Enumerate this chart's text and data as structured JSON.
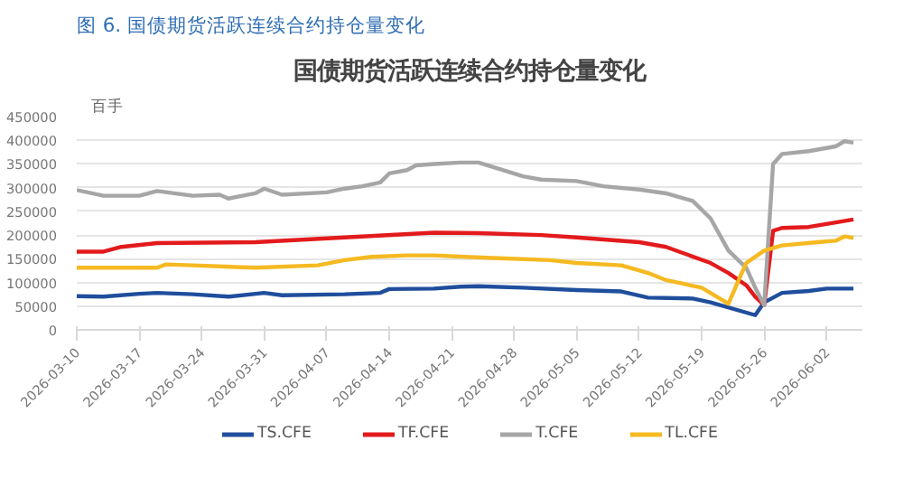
{
  "chart_data": {
    "type": "line",
    "title": "图 6. 国债期货活跃连续合约持仓量变化",
    "subtitle": "国债期货活跃连续合约持仓量变化",
    "ylabel": "百手",
    "xlim": [
      "2026-03-10",
      "2026-06-06"
    ],
    "xticks": [
      "2026-03-10",
      "2026-03-17",
      "2026-03-24",
      "2026-03-31",
      "2026-04-07",
      "2026-04-14",
      "2026-04-21",
      "2026-04-28",
      "2026-05-05",
      "2026-05-12",
      "2026-05-19",
      "2026-05-26",
      "2026-06-02"
    ],
    "ylim": [
      0,
      450000
    ],
    "yticks": [
      0,
      50000,
      100000,
      150000,
      200000,
      250000,
      300000,
      350000,
      400000,
      450000
    ],
    "grid": "y",
    "legend": "bottom",
    "marker": "none",
    "line_style": "solid",
    "series": [
      {
        "name": "TS.CFE",
        "color": "#1f4e9c",
        "x": [
          "2026-03-10",
          "2026-03-13",
          "2026-03-17",
          "2026-03-19",
          "2026-03-23",
          "2026-03-27",
          "2026-03-31",
          "2026-04-02",
          "2026-04-09",
          "2026-04-13",
          "2026-04-14",
          "2026-04-19",
          "2026-04-22",
          "2026-04-24",
          "2026-04-29",
          "2026-05-05",
          "2026-05-10",
          "2026-05-13",
          "2026-05-18",
          "2026-05-20",
          "2026-05-25",
          "2026-05-26",
          "2026-05-28",
          "2026-05-31",
          "2026-06-02",
          "2026-06-05"
        ],
        "values": [
          71000,
          70000,
          76000,
          78000,
          75000,
          70000,
          78000,
          73000,
          75000,
          78000,
          86000,
          87000,
          91000,
          92000,
          89000,
          84000,
          81000,
          68000,
          66000,
          58000,
          31000,
          58000,
          78000,
          82000,
          87000,
          87000
        ]
      },
      {
        "name": "TF.CFE",
        "color": "#e31a1c",
        "x": [
          "2026-03-10",
          "2026-03-13",
          "2026-03-15",
          "2026-03-19",
          "2026-03-30",
          "2026-04-09",
          "2026-04-19",
          "2026-04-24",
          "2026-05-01",
          "2026-05-05",
          "2026-05-12",
          "2026-05-15",
          "2026-05-20",
          "2026-05-22",
          "2026-05-24",
          "2026-05-25",
          "2026-05-26",
          "2026-05-27",
          "2026-05-28",
          "2026-05-31",
          "2026-06-05"
        ],
        "values": [
          165000,
          165000,
          175000,
          183000,
          185000,
          195000,
          205000,
          204000,
          200000,
          195000,
          185000,
          175000,
          141000,
          120000,
          94000,
          70000,
          52000,
          209000,
          215000,
          217000,
          233000
        ]
      },
      {
        "name": "T.CFE",
        "color": "#a6a6a6",
        "x": [
          "2026-03-10",
          "2026-03-13",
          "2026-03-17",
          "2026-03-19",
          "2026-03-23",
          "2026-03-26",
          "2026-03-27",
          "2026-03-30",
          "2026-03-31",
          "2026-04-02",
          "2026-04-07",
          "2026-04-09",
          "2026-04-11",
          "2026-04-13",
          "2026-04-14",
          "2026-04-16",
          "2026-04-17",
          "2026-04-19",
          "2026-04-22",
          "2026-04-24",
          "2026-04-29",
          "2026-05-01",
          "2026-05-05",
          "2026-05-08",
          "2026-05-12",
          "2026-05-15",
          "2026-05-18",
          "2026-05-20",
          "2026-05-22",
          "2026-05-24",
          "2026-05-25",
          "2026-05-26",
          "2026-05-27",
          "2026-05-28",
          "2026-05-31",
          "2026-06-03",
          "2026-06-04",
          "2026-06-05"
        ],
        "values": [
          295000,
          283000,
          283000,
          293000,
          283000,
          285000,
          277000,
          288000,
          298000,
          285000,
          290000,
          298000,
          303000,
          311000,
          330000,
          337000,
          347000,
          350000,
          353000,
          353000,
          324000,
          317000,
          314000,
          303000,
          296000,
          288000,
          272000,
          235000,
          167000,
          131000,
          89000,
          52000,
          350000,
          371000,
          377000,
          387000,
          398000,
          395000
        ]
      },
      {
        "name": "TL.CFE",
        "color": "#f5b921",
        "x": [
          "2026-03-10",
          "2026-03-19",
          "2026-03-20",
          "2026-03-23",
          "2026-03-30",
          "2026-04-06",
          "2026-04-09",
          "2026-04-12",
          "2026-04-16",
          "2026-04-19",
          "2026-04-25",
          "2026-05-02",
          "2026-05-05",
          "2026-05-10",
          "2026-05-13",
          "2026-05-15",
          "2026-05-19",
          "2026-05-22",
          "2026-05-23",
          "2026-05-24",
          "2026-05-26",
          "2026-05-28",
          "2026-06-01",
          "2026-06-03",
          "2026-06-04",
          "2026-06-05"
        ],
        "values": [
          131000,
          131000,
          138000,
          136000,
          131000,
          136000,
          147000,
          154000,
          157000,
          157000,
          152000,
          147000,
          141000,
          136000,
          120000,
          105000,
          89000,
          55000,
          99000,
          141000,
          167000,
          178000,
          185000,
          188000,
          197000,
          194000
        ]
      }
    ]
  }
}
